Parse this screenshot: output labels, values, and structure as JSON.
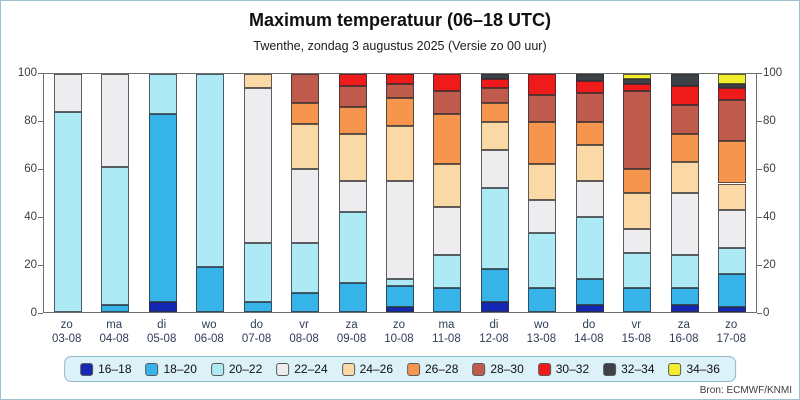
{
  "window": {
    "title": "Maximum temperatuur (06–18 UTC)",
    "subtitle": "Twenthe, zondag 3 augustus 2025 (Versie zo 00 uur)",
    "source": "Bron: ECMWF/KNMI"
  },
  "chart_data": {
    "type": "bar",
    "stacked": true,
    "unit": "%",
    "title": "Maximum temperatuur (06–18 UTC)",
    "subtitle": "Twenthe, zondag 3 augustus 2025 (Versie zo 00 uur)",
    "ylim": [
      0,
      100
    ],
    "yticks": [
      0,
      20,
      40,
      60,
      80,
      100
    ],
    "grid": false,
    "legend_position": "bottom",
    "categories": [
      {
        "day": "zo",
        "date": "03-08"
      },
      {
        "day": "ma",
        "date": "04-08"
      },
      {
        "day": "di",
        "date": "05-08"
      },
      {
        "day": "wo",
        "date": "06-08"
      },
      {
        "day": "do",
        "date": "07-08"
      },
      {
        "day": "vr",
        "date": "08-08"
      },
      {
        "day": "za",
        "date": "09-08"
      },
      {
        "day": "zo",
        "date": "10-08"
      },
      {
        "day": "ma",
        "date": "11-08"
      },
      {
        "day": "di",
        "date": "12-08"
      },
      {
        "day": "wo",
        "date": "13-08"
      },
      {
        "day": "do",
        "date": "14-08"
      },
      {
        "day": "vr",
        "date": "15-08"
      },
      {
        "day": "za",
        "date": "16-08"
      },
      {
        "day": "zo",
        "date": "17-08"
      }
    ],
    "series": [
      {
        "name": "16–18",
        "color": "#1528b4",
        "values": [
          0,
          0,
          4,
          0,
          0,
          0,
          0,
          2,
          0,
          4,
          0,
          3,
          0,
          3,
          2
        ]
      },
      {
        "name": "18–20",
        "color": "#36b4ea",
        "values": [
          0,
          3,
          79,
          19,
          4,
          8,
          12,
          9,
          10,
          14,
          10,
          11,
          10,
          7,
          14
        ]
      },
      {
        "name": "20–22",
        "color": "#aeeaf5",
        "values": [
          84,
          58,
          17,
          81,
          25,
          21,
          30,
          3,
          14,
          34,
          23,
          26,
          15,
          14,
          11
        ]
      },
      {
        "name": "22–24",
        "color": "#ededf0",
        "values": [
          16,
          39,
          0,
          0,
          65,
          31,
          13,
          41,
          20,
          16,
          14,
          15,
          10,
          26,
          16
        ]
      },
      {
        "name": "24–26",
        "color": "#fbd9a6",
        "values": [
          0,
          0,
          0,
          0,
          6,
          19,
          20,
          23,
          18,
          12,
          15,
          15,
          15,
          13,
          11
        ]
      },
      {
        "name": "26–28",
        "color": "#f6954d",
        "values": [
          0,
          0,
          0,
          0,
          0,
          9,
          11,
          12,
          21,
          8,
          18,
          10,
          10,
          12,
          18
        ]
      },
      {
        "name": "28–30",
        "color": "#bf5b4d",
        "values": [
          0,
          0,
          0,
          0,
          0,
          12,
          9,
          6,
          10,
          6,
          11,
          12,
          33,
          12,
          17
        ]
      },
      {
        "name": "30–32",
        "color": "#ef1a1a",
        "values": [
          0,
          0,
          0,
          0,
          0,
          0,
          5,
          4,
          7,
          4,
          9,
          5,
          3,
          8,
          5
        ]
      },
      {
        "name": "32–34",
        "color": "#3d4148",
        "values": [
          0,
          0,
          0,
          0,
          0,
          0,
          0,
          0,
          0,
          2,
          0,
          3,
          2,
          5,
          2
        ]
      },
      {
        "name": "34–36",
        "color": "#f2ee2e",
        "values": [
          0,
          0,
          0,
          0,
          0,
          0,
          0,
          0,
          0,
          0,
          0,
          0,
          2,
          0,
          4
        ]
      }
    ]
  }
}
